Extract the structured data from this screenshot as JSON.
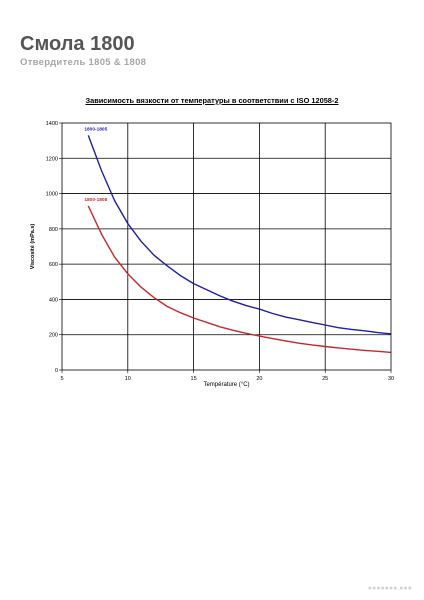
{
  "document": {
    "title": "Смола 1800",
    "subtitle": "Отвердитель 1805 & 1808"
  },
  "watermark": "●●●●●●●.●●●",
  "chart_data": {
    "type": "line",
    "title": "Зависимость вязкости от температуры в соответствии с ISO 12058-2",
    "xlabel": "Température (°C)",
    "ylabel": "Viscosité (mPa.s)",
    "xlim": [
      5,
      30
    ],
    "ylim": [
      0,
      1400
    ],
    "x_ticks": [
      5,
      10,
      15,
      20,
      25,
      30
    ],
    "y_ticks": [
      0,
      200,
      400,
      600,
      800,
      1000,
      1200,
      1400
    ],
    "grid": true,
    "series": [
      {
        "name": "1800-1805",
        "color": "#1f1faa",
        "x": [
          7,
          8,
          9,
          10,
          11,
          12,
          13,
          14,
          15,
          16,
          17,
          18,
          19,
          20,
          21,
          22,
          23,
          24,
          25,
          26,
          27,
          28,
          29,
          30
        ],
        "y": [
          1330,
          1130,
          960,
          830,
          730,
          650,
          590,
          535,
          490,
          455,
          420,
          390,
          365,
          345,
          320,
          300,
          285,
          270,
          255,
          240,
          230,
          222,
          212,
          205
        ]
      },
      {
        "name": "1800-1808",
        "color": "#c8282d",
        "x": [
          7,
          8,
          9,
          10,
          11,
          12,
          13,
          14,
          15,
          16,
          17,
          18,
          19,
          20,
          21,
          22,
          23,
          24,
          25,
          26,
          27,
          28,
          29,
          30
        ],
        "y": [
          930,
          770,
          640,
          545,
          470,
          410,
          360,
          325,
          295,
          270,
          245,
          225,
          208,
          192,
          178,
          165,
          152,
          142,
          133,
          125,
          118,
          111,
          106,
          100
        ]
      }
    ]
  }
}
